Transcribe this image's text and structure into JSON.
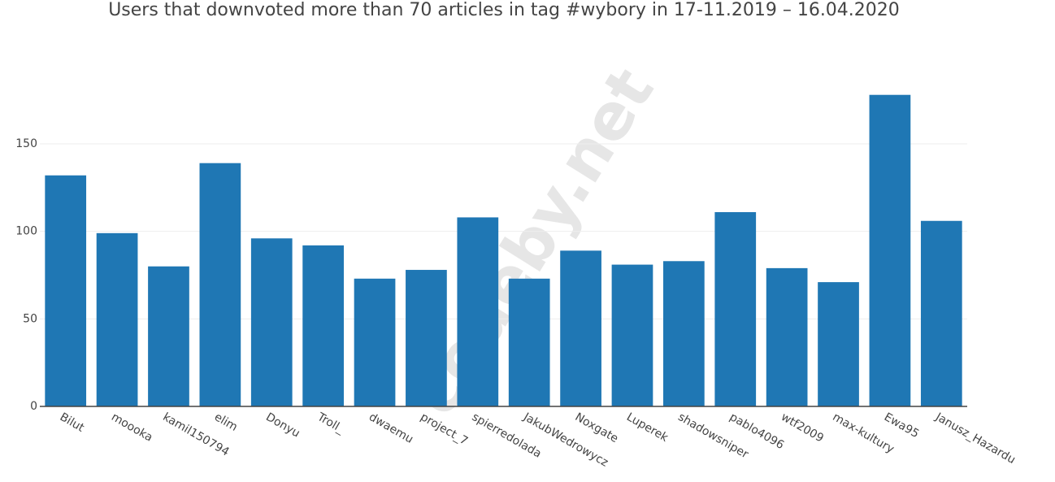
{
  "chart_data": {
    "type": "bar",
    "title": "Users that downvoted more than 70 articles in tag #wybory in 17-11.2019 – 16.04.2020",
    "watermark": "codeby.net",
    "categories": [
      "Bilut",
      "moooka",
      "kamil150794",
      "elim",
      "Donyu",
      "Troll_",
      "dwaemu",
      "project_7",
      "spierredolada",
      "JakubWedrowycz",
      "Noxgate",
      "Luperek",
      "shadowsniper",
      "pablo4096",
      "wtf2009",
      "max-kultury",
      "Ewa95",
      "Janusz_Hazardu"
    ],
    "values": [
      132,
      99,
      80,
      139,
      96,
      92,
      73,
      78,
      108,
      73,
      89,
      81,
      83,
      111,
      79,
      71,
      178,
      106
    ],
    "color": "#1f77b4",
    "ylim": [
      0,
      187
    ],
    "yticks": [
      0,
      50,
      100,
      150
    ],
    "grid": true
  }
}
